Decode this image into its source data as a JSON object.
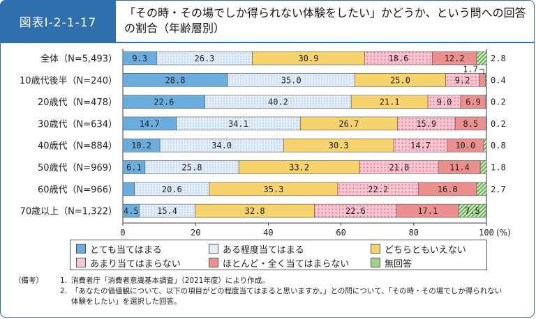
{
  "header": {
    "figure_id": "図表Ⅰ-2-1-17",
    "title": "「その時・その場でしか得られない体験をしたい」かどうか、という問への回答の割合（年齢層別）"
  },
  "chart_data": {
    "type": "bar",
    "orientation": "horizontal",
    "stacked": true,
    "categories": [
      "全体（N=5,493）",
      "10歳代後半（N=240）",
      "20歳代（N=478）",
      "30歳代（N=634）",
      "40歳代（N=884）",
      "50歳代（N=969）",
      "60歳代（N=966）",
      "70歳以上（N=1,322）"
    ],
    "series": [
      {
        "name": "とても当てはまる",
        "values": [
          9.3,
          28.8,
          22.6,
          14.7,
          10.2,
          6.1,
          3.2,
          4.5
        ],
        "color": "#6aaee0"
      },
      {
        "name": "ある程度当てはまる",
        "values": [
          26.3,
          35.0,
          40.2,
          34.1,
          34.0,
          25.8,
          20.6,
          15.4
        ],
        "color": "#e3eef9"
      },
      {
        "name": "どちらともいえない",
        "values": [
          30.9,
          25.0,
          21.1,
          26.7,
          30.3,
          33.2,
          35.3,
          32.8
        ],
        "color": "#f7d36e"
      },
      {
        "name": "あまり当てはまらない",
        "values": [
          18.6,
          9.2,
          9.0,
          15.9,
          14.7,
          21.8,
          22.2,
          22.6
        ],
        "color": "#f8c6d3"
      },
      {
        "name": "ほとんど・全く当てはまらない",
        "values": [
          12.2,
          1.7,
          6.9,
          8.5,
          10.0,
          11.4,
          16.0,
          17.1
        ],
        "color": "#ec8f8f"
      },
      {
        "name": "無回答",
        "values": [
          2.8,
          0.4,
          0.2,
          0.2,
          0.8,
          1.8,
          2.7,
          7.5
        ],
        "color": "#9fd18b"
      }
    ],
    "xlim": [
      0,
      100
    ],
    "xticks": [
      0,
      20,
      40,
      60,
      80,
      100
    ],
    "x_unit": "(%)",
    "legend": "bottom"
  },
  "notes": {
    "head": "（備考）",
    "items": [
      {
        "num": "1.",
        "text": "消費者庁「消費者意識基本調査」（2021年度）により作成。"
      },
      {
        "num": "2.",
        "text": "「あなたの価値観について、以下の項目がどの程度当てはまると思いますか。」との問について、「その時・その場でしか得られない体験をしたい」を選択した回答。"
      }
    ]
  }
}
